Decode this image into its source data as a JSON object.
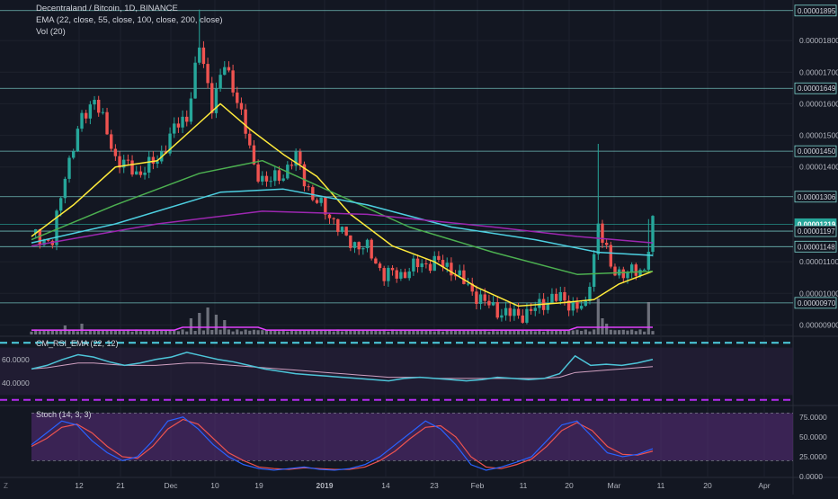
{
  "header": {
    "symbol_line": "Decentraland / Bitcoin, 1D, BINANCE",
    "ema_line": "EMA (22, close, 55, close, 100, close, 200, close)",
    "vol_line": "Vol (20)"
  },
  "rsi_pane": {
    "title": "CM_RSI_EMA (22, 12)",
    "ticks": [
      "60.0000",
      "40.0000"
    ],
    "levels": [
      70,
      30
    ]
  },
  "stoch_pane": {
    "title": "Stoch (14, 3, 3)",
    "ticks": [
      "75.0000",
      "50.0000",
      "25.0000",
      "0.0000"
    ]
  },
  "footer": {
    "z_label": "Z"
  },
  "colors": {
    "background": "#131722",
    "up": "#26a69a",
    "down": "#ef5350",
    "ema22": "#ffeb3b",
    "ema55": "#4caf50",
    "ema100": "#4dd0e1",
    "ema200": "#9c27b0",
    "hline": "#7fd6d0",
    "volume": "#8c8f99",
    "volume_ma": "#e040fb",
    "rsi": "#4dc4d8",
    "rsi_ema": "#cfa0c0",
    "rsi_band": "#4dd0e1",
    "rsi_low": "#b62bf0",
    "stoch_k": "#2962ff",
    "stoch_d": "#ef5350",
    "stoch_fill": "#5b2e7d"
  },
  "chart_data": {
    "type": "candlestick",
    "title": "Decentraland / Bitcoin, 1D, BINANCE",
    "x_ticks": [
      "12",
      "21",
      "Dec",
      "10",
      "19",
      "2019",
      "14",
      "23",
      "Feb",
      "11",
      "20",
      "Mar",
      "11",
      "20",
      "Apr"
    ],
    "y_ticks": [
      "0.00001800",
      "0.00001700",
      "0.00001600",
      "0.00001500",
      "0.00001400",
      "0.00001100",
      "0.00001000",
      "0.00000900"
    ],
    "horizontal_levels": [
      {
        "label": "0.00001895",
        "value": 1.895e-05
      },
      {
        "label": "0.00001649",
        "value": 1.649e-05
      },
      {
        "label": "0.00001450",
        "value": 1.45e-05
      },
      {
        "label": "0.00001306",
        "value": 1.306e-05
      },
      {
        "label": "0.00001219",
        "value": 1.219e-05
      },
      {
        "label": "0.00001197",
        "value": 1.197e-05
      },
      {
        "label": "0.00001148",
        "value": 1.148e-05
      },
      {
        "label": "0.00000970",
        "value": 9.7e-06
      }
    ],
    "last_price": "0.00001219",
    "ylim": [
      8.7e-06,
      1.9e-05
    ],
    "close_trend": [
      {
        "x": 0,
        "y": 1.19e-05
      },
      {
        "x": 5,
        "y": 1.16e-05
      },
      {
        "x": 8,
        "y": 1.38e-05
      },
      {
        "x": 12,
        "y": 1.55e-05
      },
      {
        "x": 15,
        "y": 1.62e-05
      },
      {
        "x": 20,
        "y": 1.43e-05
      },
      {
        "x": 25,
        "y": 1.38e-05
      },
      {
        "x": 30,
        "y": 1.42e-05
      },
      {
        "x": 34,
        "y": 1.52e-05
      },
      {
        "x": 37,
        "y": 1.56e-05
      },
      {
        "x": 40,
        "y": 1.78e-05
      },
      {
        "x": 43,
        "y": 1.6e-05
      },
      {
        "x": 46,
        "y": 1.72e-05
      },
      {
        "x": 49,
        "y": 1.62e-05
      },
      {
        "x": 53,
        "y": 1.4e-05
      },
      {
        "x": 56,
        "y": 1.35e-05
      },
      {
        "x": 60,
        "y": 1.38e-05
      },
      {
        "x": 63,
        "y": 1.43e-05
      },
      {
        "x": 67,
        "y": 1.3e-05
      },
      {
        "x": 71,
        "y": 1.25e-05
      },
      {
        "x": 75,
        "y": 1.17e-05
      },
      {
        "x": 80,
        "y": 1.14e-05
      },
      {
        "x": 84,
        "y": 1.06e-05
      },
      {
        "x": 88,
        "y": 1.06e-05
      },
      {
        "x": 92,
        "y": 1.09e-05
      },
      {
        "x": 96,
        "y": 1.1e-05
      },
      {
        "x": 100,
        "y": 1.08e-05
      },
      {
        "x": 104,
        "y": 1.02e-05
      },
      {
        "x": 108,
        "y": 9.7e-06
      },
      {
        "x": 112,
        "y": 9.4e-06
      },
      {
        "x": 116,
        "y": 9.3e-06
      },
      {
        "x": 120,
        "y": 9.5e-06
      },
      {
        "x": 124,
        "y": 9.9e-06
      },
      {
        "x": 128,
        "y": 9.7e-06
      },
      {
        "x": 132,
        "y": 9.5e-06
      },
      {
        "x": 135,
        "y": 1.22e-05
      },
      {
        "x": 138,
        "y": 1.08e-05
      },
      {
        "x": 142,
        "y": 1.06e-05
      },
      {
        "x": 146,
        "y": 1.08e-05
      },
      {
        "x": 148,
        "y": 1.219e-05
      }
    ],
    "series": [
      {
        "name": "EMA 22",
        "values": [
          {
            "x": 0,
            "y": 1.18e-05
          },
          {
            "x": 10,
            "y": 1.28e-05
          },
          {
            "x": 20,
            "y": 1.4e-05
          },
          {
            "x": 30,
            "y": 1.42e-05
          },
          {
            "x": 40,
            "y": 1.54e-05
          },
          {
            "x": 45,
            "y": 1.6e-05
          },
          {
            "x": 52,
            "y": 1.52e-05
          },
          {
            "x": 60,
            "y": 1.44e-05
          },
          {
            "x": 68,
            "y": 1.37e-05
          },
          {
            "x": 76,
            "y": 1.25e-05
          },
          {
            "x": 86,
            "y": 1.15e-05
          },
          {
            "x": 96,
            "y": 1.1e-05
          },
          {
            "x": 106,
            "y": 1.02e-05
          },
          {
            "x": 116,
            "y": 9.6e-06
          },
          {
            "x": 126,
            "y": 9.7e-06
          },
          {
            "x": 134,
            "y": 9.8e-06
          },
          {
            "x": 140,
            "y": 1.03e-05
          },
          {
            "x": 148,
            "y": 1.07e-05
          }
        ]
      },
      {
        "name": "EMA 55",
        "values": [
          {
            "x": 0,
            "y": 1.17e-05
          },
          {
            "x": 20,
            "y": 1.28e-05
          },
          {
            "x": 40,
            "y": 1.38e-05
          },
          {
            "x": 55,
            "y": 1.42e-05
          },
          {
            "x": 70,
            "y": 1.33e-05
          },
          {
            "x": 90,
            "y": 1.21e-05
          },
          {
            "x": 110,
            "y": 1.13e-05
          },
          {
            "x": 130,
            "y": 1.06e-05
          },
          {
            "x": 148,
            "y": 1.07e-05
          }
        ]
      },
      {
        "name": "EMA 100",
        "values": [
          {
            "x": 0,
            "y": 1.16e-05
          },
          {
            "x": 20,
            "y": 1.22e-05
          },
          {
            "x": 45,
            "y": 1.32e-05
          },
          {
            "x": 60,
            "y": 1.33e-05
          },
          {
            "x": 80,
            "y": 1.28e-05
          },
          {
            "x": 100,
            "y": 1.21e-05
          },
          {
            "x": 120,
            "y": 1.17e-05
          },
          {
            "x": 135,
            "y": 1.13e-05
          },
          {
            "x": 148,
            "y": 1.12e-05
          }
        ]
      },
      {
        "name": "EMA 200",
        "values": [
          {
            "x": 0,
            "y": 1.15e-05
          },
          {
            "x": 30,
            "y": 1.22e-05
          },
          {
            "x": 55,
            "y": 1.26e-05
          },
          {
            "x": 80,
            "y": 1.25e-05
          },
          {
            "x": 110,
            "y": 1.21e-05
          },
          {
            "x": 130,
            "y": 1.18e-05
          },
          {
            "x": 148,
            "y": 1.16e-05
          }
        ]
      }
    ],
    "volume_spikes": [
      {
        "x": 38,
        "v": 0.45
      },
      {
        "x": 40,
        "v": 0.6
      },
      {
        "x": 42,
        "v": 0.75
      },
      {
        "x": 44,
        "v": 0.55
      },
      {
        "x": 46,
        "v": 0.4
      },
      {
        "x": 8,
        "v": 0.25
      },
      {
        "x": 12,
        "v": 0.3
      },
      {
        "x": 135,
        "v": 1.0
      },
      {
        "x": 136,
        "v": 0.45
      },
      {
        "x": 137,
        "v": 0.3
      },
      {
        "x": 147,
        "v": 0.9
      }
    ],
    "rsi_values": [
      52,
      55,
      60,
      64,
      62,
      58,
      55,
      57,
      60,
      62,
      66,
      63,
      60,
      58,
      55,
      52,
      50,
      48,
      47,
      46,
      45,
      44,
      43,
      42,
      44,
      45,
      44,
      43,
      42,
      43,
      45,
      44,
      43,
      44,
      48,
      63,
      55,
      56,
      55,
      57,
      60
    ],
    "rsi_ema_values": [
      52,
      53,
      55,
      57,
      57,
      56,
      55,
      55,
      55,
      56,
      57,
      57,
      56,
      55,
      54,
      53,
      52,
      51,
      50,
      49,
      48,
      47,
      46,
      45,
      45,
      45,
      44,
      44,
      44,
      44,
      44,
      44,
      44,
      44,
      45,
      49,
      50,
      51,
      52,
      53,
      54
    ],
    "stoch_k": [
      40,
      55,
      70,
      65,
      45,
      30,
      20,
      25,
      45,
      70,
      75,
      60,
      40,
      25,
      15,
      10,
      8,
      10,
      12,
      9,
      8,
      10,
      15,
      25,
      40,
      55,
      70,
      60,
      40,
      15,
      8,
      12,
      18,
      25,
      45,
      65,
      70,
      50,
      30,
      25,
      28,
      35
    ],
    "stoch_d": [
      38,
      48,
      62,
      66,
      55,
      38,
      25,
      23,
      38,
      60,
      72,
      66,
      48,
      30,
      20,
      12,
      10,
      9,
      11,
      10,
      9,
      9,
      12,
      20,
      32,
      48,
      62,
      64,
      50,
      25,
      12,
      10,
      15,
      22,
      38,
      58,
      68,
      58,
      38,
      28,
      27,
      32
    ]
  }
}
